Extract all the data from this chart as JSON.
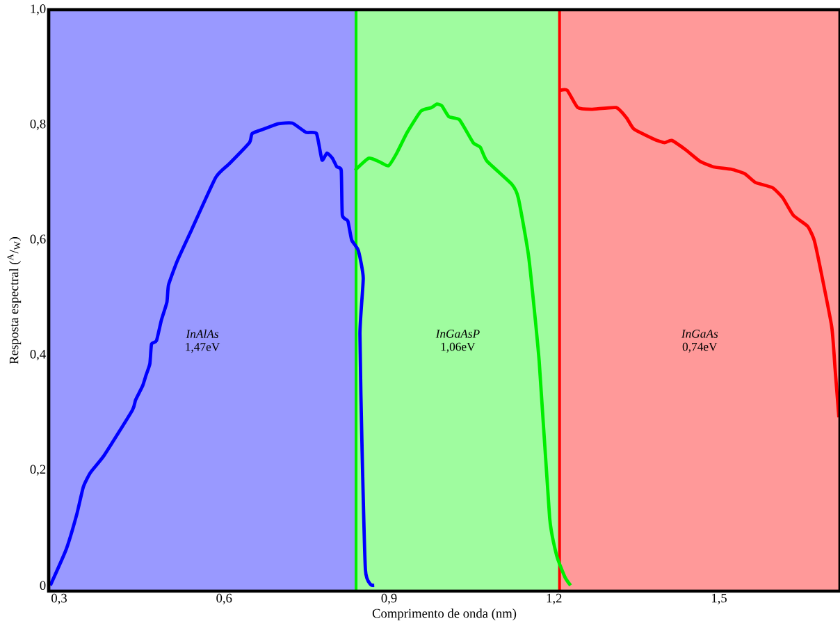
{
  "chart_data": {
    "type": "line",
    "xlabel": "Comprimento de onda (nm)",
    "ylabel": "Resposta espectral ($^{A}$/$_{W}$)",
    "xlim": [
      0.281,
      1.72
    ],
    "ylim": [
      -0.01,
      1.0
    ],
    "xticks": [
      {
        "value": 0.3,
        "label": "0,3"
      },
      {
        "value": 0.6,
        "label": "0,6"
      },
      {
        "value": 0.9,
        "label": "0,9"
      },
      {
        "value": 1.2,
        "label": "1,2"
      },
      {
        "value": 1.5,
        "label": "1,5"
      }
    ],
    "yticks": [
      0,
      {
        "value": 0.2,
        "label": "0,2"
      },
      {
        "value": 0.4,
        "label": "0,4"
      },
      {
        "value": 0.6,
        "label": "0,6"
      },
      {
        "value": 0.8,
        "label": "0,8"
      },
      {
        "value": 1.0,
        "label": "1,0"
      }
    ],
    "grid": false,
    "marker": "none",
    "line_style": "solid",
    "bands": [
      {
        "axis": "x",
        "from": 0.281,
        "to": 0.84,
        "label": "*InAlAs* 1,47eV",
        "color": "#9999ff"
      },
      {
        "axis": "x",
        "from": 0.84,
        "to": 1.21,
        "label": "*InGaAsP* 1,06eV",
        "color": "#9ffc9f"
      },
      {
        "axis": "x",
        "from": 1.21,
        "to": 1.72,
        "label": "*InGaAs* 0,74eV",
        "color": "#ff9999"
      }
    ],
    "ref_lines": [
      {
        "axis": "x",
        "value": 0.84,
        "color": "#00ee00"
      },
      {
        "axis": "x",
        "value": 1.21,
        "color": "#ff0000"
      }
    ],
    "series": [
      {
        "color": "#0000ff",
        "x": [
          0.284,
          0.313,
          0.332,
          0.344,
          0.357,
          0.382,
          0.433,
          0.439,
          0.452,
          0.458,
          0.465,
          0.468,
          0.477,
          0.486,
          0.496,
          0.499,
          0.515,
          0.541,
          0.585,
          0.61,
          0.646,
          0.651,
          0.673,
          0.699,
          0.724,
          0.749,
          0.768,
          0.778,
          0.787,
          0.797,
          0.805,
          0.813,
          0.815,
          0.825,
          0.832,
          0.844,
          0.853,
          0.847,
          0.851,
          0.857,
          0.866,
          0.873
        ],
        "values": [
          0.0,
          0.063,
          0.123,
          0.171,
          0.196,
          0.226,
          0.304,
          0.322,
          0.347,
          0.365,
          0.385,
          0.419,
          0.425,
          0.461,
          0.492,
          0.522,
          0.564,
          0.618,
          0.709,
          0.733,
          0.769,
          0.785,
          0.793,
          0.802,
          0.803,
          0.787,
          0.785,
          0.739,
          0.751,
          0.742,
          0.727,
          0.721,
          0.643,
          0.633,
          0.6,
          0.582,
          0.534,
          0.437,
          0.232,
          0.027,
          0.002,
          0.0
        ]
      },
      {
        "color": "#00ee00",
        "x": [
          0.838,
          0.863,
          0.882,
          0.899,
          0.914,
          0.933,
          0.958,
          0.977,
          0.987,
          0.996,
          1.009,
          1.028,
          1.053,
          1.066,
          1.078,
          1.123,
          1.135,
          1.154,
          1.173,
          1.192,
          1.205,
          1.22,
          1.23
        ],
        "values": [
          0.721,
          0.742,
          0.736,
          0.729,
          0.751,
          0.787,
          0.824,
          0.83,
          0.836,
          0.833,
          0.814,
          0.809,
          0.769,
          0.761,
          0.737,
          0.697,
          0.673,
          0.57,
          0.389,
          0.117,
          0.051,
          0.014,
          0.0
        ]
      },
      {
        "color": "#ff0000",
        "x": [
          1.211,
          1.224,
          1.243,
          1.268,
          1.313,
          1.332,
          1.345,
          1.382,
          1.401,
          1.414,
          1.439,
          1.465,
          1.49,
          1.522,
          1.547,
          1.566,
          1.597,
          1.616,
          1.635,
          1.661,
          1.673,
          1.684,
          1.705,
          1.711,
          1.718
        ],
        "values": [
          0.86,
          0.86,
          0.83,
          0.827,
          0.83,
          0.812,
          0.793,
          0.775,
          0.769,
          0.773,
          0.757,
          0.737,
          0.727,
          0.723,
          0.715,
          0.7,
          0.691,
          0.673,
          0.643,
          0.624,
          0.6,
          0.552,
          0.449,
          0.377,
          0.292
        ]
      }
    ]
  }
}
